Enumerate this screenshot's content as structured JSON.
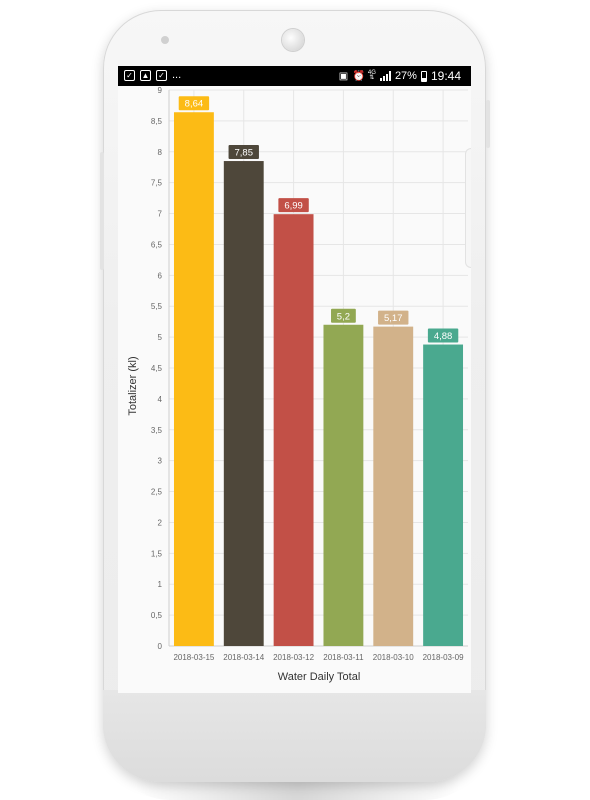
{
  "status_bar": {
    "left_icons": [
      "shield-icon",
      "image-icon",
      "shield-icon"
    ],
    "more": "...",
    "right_icons": [
      "battery-saver-icon",
      "alarm-icon",
      "network-4g-icon",
      "signal-icon"
    ],
    "battery": "27%",
    "battery_level": 0.27,
    "time": "19:44"
  },
  "colors": {
    "screen_bg": "#fafafa",
    "grid": "#e6e6e6",
    "axis_text": "#666666",
    "label_text": "#333333"
  },
  "chart_data": {
    "type": "bar",
    "categories": [
      "2018-03-15",
      "2018-03-14",
      "2018-03-12",
      "2018-03-11",
      "2018-03-10",
      "2018-03-09"
    ],
    "values": [
      8.64,
      7.85,
      6.99,
      5.2,
      5.17,
      4.88
    ],
    "data_labels": [
      "8,64",
      "7,85",
      "6,99",
      "5,2",
      "5,17",
      "4,88"
    ],
    "bar_colors": [
      "#fcbb15",
      "#4e473a",
      "#c25047",
      "#92a853",
      "#d2b28a",
      "#4aa98f"
    ],
    "xlabel": "Water Daily Total",
    "ylabel": "Totalizer (kl)",
    "ylim": [
      0,
      9
    ],
    "yticks": [
      "0",
      "0,5",
      "1",
      "1,5",
      "2",
      "2,5",
      "3",
      "3,5",
      "4",
      "4,5",
      "5",
      "5,5",
      "6",
      "6,5",
      "7",
      "7,5",
      "8",
      "8,5",
      "9"
    ],
    "grid": true
  }
}
